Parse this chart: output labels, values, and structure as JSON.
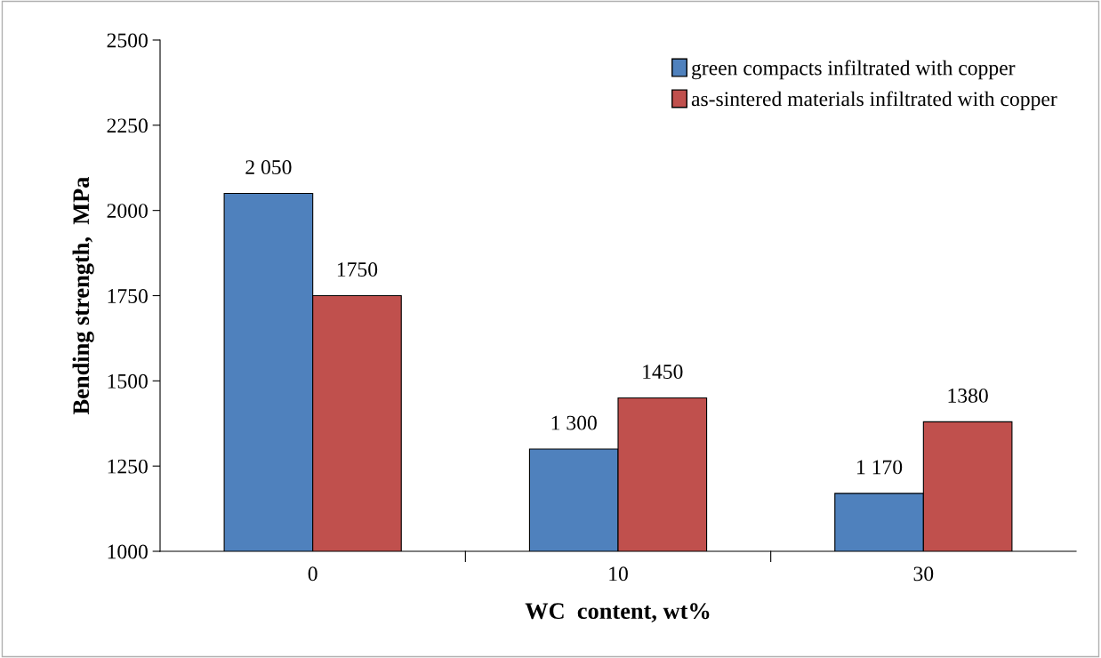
{
  "chart_data": {
    "type": "bar",
    "xlabel": "WC  content, wt%",
    "ylabel": "Bending strength,  MPa",
    "categories": [
      "0",
      "10",
      "30"
    ],
    "series": [
      {
        "name": "green compacts infiltrated with copper",
        "color": "#4f81bd",
        "values": [
          2050,
          1300,
          1170
        ],
        "value_labels": [
          "2 050",
          "1 300",
          "1 170"
        ]
      },
      {
        "name": "as-sintered materials infiltrated with copper",
        "color": "#c0504d",
        "values": [
          1750,
          1450,
          1380
        ],
        "value_labels": [
          "1750",
          "1450",
          "1380"
        ]
      }
    ],
    "ylim": [
      1000,
      2500
    ],
    "yticks": [
      1000,
      1250,
      1500,
      1750,
      2000,
      2250,
      2500
    ],
    "grid": false,
    "legend": "top right"
  }
}
